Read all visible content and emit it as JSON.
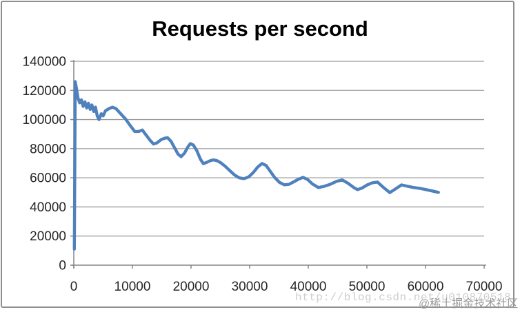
{
  "chart_data": {
    "type": "line",
    "title": "Requests per second",
    "xlabel": "",
    "ylabel": "",
    "xlim": [
      0,
      70000
    ],
    "ylim": [
      0,
      140000
    ],
    "x_ticks": [
      0,
      10000,
      20000,
      30000,
      40000,
      50000,
      60000,
      70000
    ],
    "y_ticks": [
      0,
      20000,
      40000,
      60000,
      80000,
      100000,
      120000,
      140000
    ],
    "grid": "horizontal",
    "legend": "none",
    "colors": {
      "series": "#4F81BD",
      "gridline": "#9c9c9c",
      "axis": "#858585",
      "tick_label": "#262626",
      "title": "#000000",
      "border": "#8f8f8f"
    },
    "series": [
      {
        "name": "Requests per second",
        "color": "#4F81BD",
        "points": [
          [
            100,
            11000
          ],
          [
            250,
            126000
          ],
          [
            450,
            121500
          ],
          [
            700,
            115000
          ],
          [
            1000,
            111500
          ],
          [
            1300,
            113500
          ],
          [
            1600,
            109000
          ],
          [
            1900,
            112200
          ],
          [
            2200,
            108000
          ],
          [
            2500,
            111200
          ],
          [
            2800,
            107000
          ],
          [
            3100,
            110000
          ],
          [
            3400,
            105500
          ],
          [
            3700,
            108500
          ],
          [
            4000,
            102500
          ],
          [
            4300,
            100000
          ],
          [
            4700,
            104000
          ],
          [
            5000,
            102500
          ],
          [
            5400,
            106000
          ],
          [
            6000,
            107500
          ],
          [
            6600,
            108500
          ],
          [
            7200,
            107500
          ],
          [
            8000,
            104000
          ],
          [
            8800,
            100500
          ],
          [
            9600,
            96000
          ],
          [
            10400,
            91800
          ],
          [
            11100,
            91800
          ],
          [
            11700,
            92800
          ],
          [
            12400,
            89000
          ],
          [
            13000,
            85800
          ],
          [
            13600,
            83200
          ],
          [
            14200,
            84000
          ],
          [
            14900,
            86200
          ],
          [
            15600,
            87300
          ],
          [
            16000,
            87500
          ],
          [
            16600,
            85000
          ],
          [
            17200,
            80500
          ],
          [
            17800,
            76200
          ],
          [
            18300,
            74500
          ],
          [
            18900,
            77000
          ],
          [
            19500,
            81500
          ],
          [
            19900,
            83500
          ],
          [
            20400,
            82500
          ],
          [
            21000,
            78500
          ],
          [
            21600,
            72800
          ],
          [
            22100,
            69700
          ],
          [
            22700,
            70600
          ],
          [
            23300,
            71800
          ],
          [
            23800,
            72300
          ],
          [
            24400,
            71800
          ],
          [
            25000,
            70500
          ],
          [
            25800,
            68000
          ],
          [
            26600,
            65000
          ],
          [
            27400,
            62000
          ],
          [
            28200,
            60000
          ],
          [
            29000,
            59400
          ],
          [
            29800,
            60500
          ],
          [
            30600,
            63500
          ],
          [
            31400,
            67500
          ],
          [
            32100,
            69800
          ],
          [
            32800,
            68500
          ],
          [
            33500,
            64500
          ],
          [
            34300,
            60000
          ],
          [
            35100,
            56800
          ],
          [
            35900,
            55200
          ],
          [
            36700,
            55500
          ],
          [
            37500,
            57200
          ],
          [
            38300,
            59000
          ],
          [
            39100,
            60300
          ],
          [
            39900,
            58800
          ],
          [
            40700,
            55800
          ],
          [
            41700,
            53300
          ],
          [
            42700,
            54100
          ],
          [
            43700,
            55500
          ],
          [
            44800,
            57500
          ],
          [
            45800,
            58500
          ],
          [
            46800,
            56200
          ],
          [
            47800,
            53200
          ],
          [
            48400,
            51900
          ],
          [
            49200,
            53000
          ],
          [
            50000,
            55000
          ],
          [
            50900,
            56500
          ],
          [
            51800,
            57100
          ],
          [
            52700,
            53800
          ],
          [
            53900,
            49800
          ],
          [
            54900,
            52400
          ],
          [
            55900,
            55100
          ],
          [
            56900,
            54200
          ],
          [
            58000,
            53300
          ],
          [
            59100,
            52700
          ],
          [
            60100,
            51900
          ],
          [
            61100,
            51000
          ],
          [
            62200,
            50000
          ]
        ]
      }
    ]
  },
  "watermark": {
    "url_text": "http://blog.csdn.net/u010870518",
    "community_text": "@稀土掘金技术社区"
  }
}
